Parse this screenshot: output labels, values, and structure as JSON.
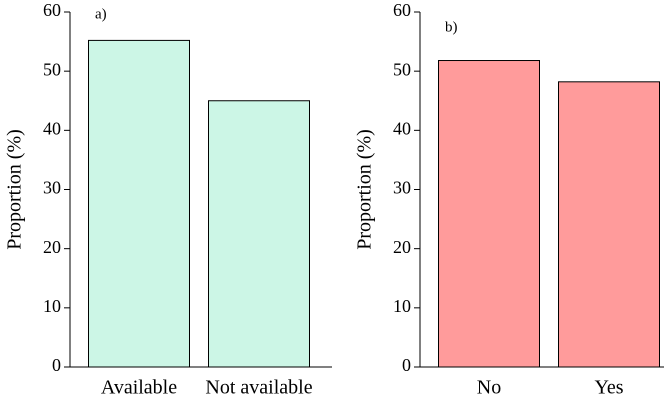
{
  "chart_data": [
    {
      "type": "bar",
      "annotation": "a)",
      "ylabel": "Proportion (%)",
      "categories": [
        "Available",
        "Not available"
      ],
      "values": [
        55.2,
        45.0
      ],
      "color": "#ccf6e6",
      "ylim": [
        0,
        60
      ],
      "yticks": [
        0,
        10,
        20,
        30,
        40,
        50,
        60
      ]
    },
    {
      "type": "bar",
      "annotation": "b)",
      "ylabel": "Proportion (%)",
      "categories": [
        "No",
        "Yes"
      ],
      "values": [
        51.8,
        48.2
      ],
      "color": "#ff9b9b",
      "ylim": [
        0,
        60
      ],
      "yticks": [
        0,
        10,
        20,
        30,
        40,
        50,
        60
      ]
    }
  ]
}
